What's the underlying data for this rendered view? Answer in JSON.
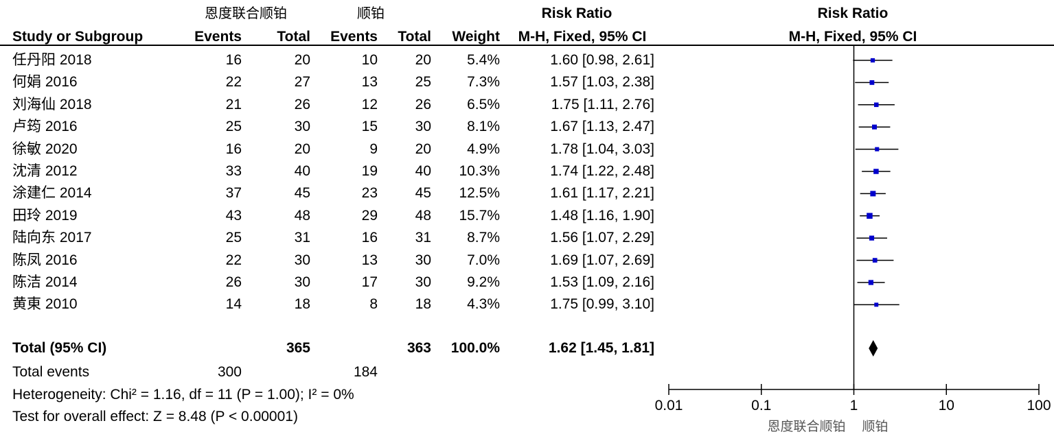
{
  "header": {
    "group_exp": "恩度联合顺铂",
    "group_ctrl": "顺铂",
    "col_study": "Study or Subgroup",
    "col_events": "Events",
    "col_total": "Total",
    "col_weight": "Weight",
    "rr_title": "Risk Ratio",
    "rr_method": "M-H, Fixed, 95% CI",
    "plot_title": "Risk Ratio",
    "plot_method": "M-H, Fixed, 95% CI"
  },
  "studies": [
    {
      "name": "任丹阳 2018",
      "e_events": "16",
      "e_total": "20",
      "c_events": "10",
      "c_total": "20",
      "weight": "5.4%",
      "ci": "1.60 [0.98, 2.61]"
    },
    {
      "name": "何娟 2016",
      "e_events": "22",
      "e_total": "27",
      "c_events": "13",
      "c_total": "25",
      "weight": "7.3%",
      "ci": "1.57 [1.03, 2.38]"
    },
    {
      "name": "刘海仙 2018",
      "e_events": "21",
      "e_total": "26",
      "c_events": "12",
      "c_total": "26",
      "weight": "6.5%",
      "ci": "1.75 [1.11, 2.76]"
    },
    {
      "name": "卢筠 2016",
      "e_events": "25",
      "e_total": "30",
      "c_events": "15",
      "c_total": "30",
      "weight": "8.1%",
      "ci": "1.67 [1.13, 2.47]"
    },
    {
      "name": "徐敏 2020",
      "e_events": "16",
      "e_total": "20",
      "c_events": "9",
      "c_total": "20",
      "weight": "4.9%",
      "ci": "1.78 [1.04, 3.03]"
    },
    {
      "name": "沈清 2012",
      "e_events": "33",
      "e_total": "40",
      "c_events": "19",
      "c_total": "40",
      "weight": "10.3%",
      "ci": "1.74 [1.22, 2.48]"
    },
    {
      "name": "涂建仁 2014",
      "e_events": "37",
      "e_total": "45",
      "c_events": "23",
      "c_total": "45",
      "weight": "12.5%",
      "ci": "1.61 [1.17, 2.21]"
    },
    {
      "name": "田玲 2019",
      "e_events": "43",
      "e_total": "48",
      "c_events": "29",
      "c_total": "48",
      "weight": "15.7%",
      "ci": "1.48 [1.16, 1.90]"
    },
    {
      "name": "陆向东 2017",
      "e_events": "25",
      "e_total": "31",
      "c_events": "16",
      "c_total": "31",
      "weight": "8.7%",
      "ci": "1.56 [1.07, 2.29]"
    },
    {
      "name": "陈凤 2016",
      "e_events": "22",
      "e_total": "30",
      "c_events": "13",
      "c_total": "30",
      "weight": "7.0%",
      "ci": "1.69 [1.07, 2.69]"
    },
    {
      "name": "陈洁 2014",
      "e_events": "26",
      "e_total": "30",
      "c_events": "17",
      "c_total": "30",
      "weight": "9.2%",
      "ci": "1.53 [1.09, 2.16]"
    },
    {
      "name": "黄東 2010",
      "e_events": "14",
      "e_total": "18",
      "c_events": "8",
      "c_total": "18",
      "weight": "4.3%",
      "ci": "1.75 [0.99, 3.10]"
    }
  ],
  "total": {
    "label": "Total (95% CI)",
    "e_total": "365",
    "c_total": "363",
    "weight": "100.0%",
    "ci": "1.62 [1.45, 1.81]",
    "events_label": "Total events",
    "e_events": "300",
    "c_events": "184"
  },
  "footer": {
    "heterogeneity": "Heterogeneity: Chi² = 1.16, df = 11 (P = 1.00); I² = 0%",
    "overall": "Test for overall effect: Z = 8.48 (P < 0.00001)"
  },
  "chart_data": {
    "type": "forest",
    "title": "Risk Ratio",
    "subtitle": "M-H, Fixed, 95% CI",
    "x_scale": "log",
    "xlim": [
      0.01,
      100
    ],
    "x_ticks": [
      "0.01",
      "0.1",
      "1",
      "10",
      "100"
    ],
    "x_tick_values": [
      0.01,
      0.1,
      1,
      10,
      100
    ],
    "reference_line": 1,
    "xlabel_left": "恩度联合顺铂",
    "xlabel_right": "顺铂",
    "marker_color": "#0000cc",
    "studies": [
      {
        "rr": 1.6,
        "lo": 0.98,
        "hi": 2.61,
        "weight": 5.4
      },
      {
        "rr": 1.57,
        "lo": 1.03,
        "hi": 2.38,
        "weight": 7.3
      },
      {
        "rr": 1.75,
        "lo": 1.11,
        "hi": 2.76,
        "weight": 6.5
      },
      {
        "rr": 1.67,
        "lo": 1.13,
        "hi": 2.47,
        "weight": 8.1
      },
      {
        "rr": 1.78,
        "lo": 1.04,
        "hi": 3.03,
        "weight": 4.9
      },
      {
        "rr": 1.74,
        "lo": 1.22,
        "hi": 2.48,
        "weight": 10.3
      },
      {
        "rr": 1.61,
        "lo": 1.17,
        "hi": 2.21,
        "weight": 12.5
      },
      {
        "rr": 1.48,
        "lo": 1.16,
        "hi": 1.9,
        "weight": 15.7
      },
      {
        "rr": 1.56,
        "lo": 1.07,
        "hi": 2.29,
        "weight": 8.7
      },
      {
        "rr": 1.69,
        "lo": 1.07,
        "hi": 2.69,
        "weight": 7.0
      },
      {
        "rr": 1.53,
        "lo": 1.09,
        "hi": 2.16,
        "weight": 9.2
      },
      {
        "rr": 1.75,
        "lo": 0.99,
        "hi": 3.1,
        "weight": 4.3
      }
    ],
    "pooled": {
      "rr": 1.62,
      "lo": 1.45,
      "hi": 1.81
    }
  }
}
